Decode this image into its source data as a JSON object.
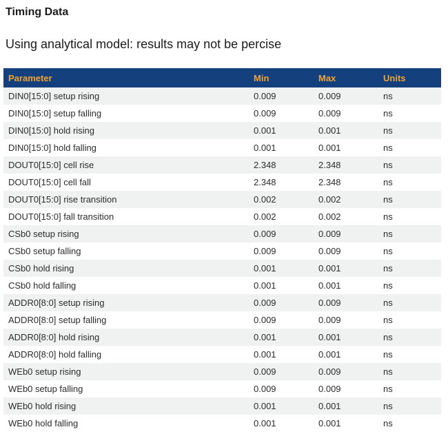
{
  "page": {
    "title": "Timing Data",
    "subtitle": "Using analytical model: results may not be percise"
  },
  "colors": {
    "header_bg": "#14417E",
    "header_text": "#F0A330",
    "row_stripe": "#F0F1F1",
    "row_text": "#2B2B2B"
  },
  "table": {
    "columns": [
      "Parameter",
      "Min",
      "Max",
      "Units"
    ],
    "rows": [
      {
        "parameter": "DIN0[15:0] setup rising",
        "min": "0.009",
        "max": "0.009",
        "units": "ns"
      },
      {
        "parameter": "DIN0[15:0] setup falling",
        "min": "0.009",
        "max": "0.009",
        "units": "ns"
      },
      {
        "parameter": "DIN0[15:0] hold rising",
        "min": "0.001",
        "max": "0.001",
        "units": "ns"
      },
      {
        "parameter": "DIN0[15:0] hold falling",
        "min": "0.001",
        "max": "0.001",
        "units": "ns"
      },
      {
        "parameter": "DOUT0[15:0] cell rise",
        "min": "2.348",
        "max": "2.348",
        "units": "ns"
      },
      {
        "parameter": "DOUT0[15:0] cell fall",
        "min": "2.348",
        "max": "2.348",
        "units": "ns"
      },
      {
        "parameter": "DOUT0[15:0] rise transition",
        "min": "0.002",
        "max": "0.002",
        "units": "ns"
      },
      {
        "parameter": "DOUT0[15:0] fall transition",
        "min": "0.002",
        "max": "0.002",
        "units": "ns"
      },
      {
        "parameter": "CSb0 setup rising",
        "min": "0.009",
        "max": "0.009",
        "units": "ns"
      },
      {
        "parameter": "CSb0 setup falling",
        "min": "0.009",
        "max": "0.009",
        "units": "ns"
      },
      {
        "parameter": "CSb0 hold rising",
        "min": "0.001",
        "max": "0.001",
        "units": "ns"
      },
      {
        "parameter": "CSb0 hold falling",
        "min": "0.001",
        "max": "0.001",
        "units": "ns"
      },
      {
        "parameter": "ADDR0[8:0] setup rising",
        "min": "0.009",
        "max": "0.009",
        "units": "ns"
      },
      {
        "parameter": "ADDR0[8:0] setup falling",
        "min": "0.009",
        "max": "0.009",
        "units": "ns"
      },
      {
        "parameter": "ADDR0[8:0] hold rising",
        "min": "0.001",
        "max": "0.001",
        "units": "ns"
      },
      {
        "parameter": "ADDR0[8:0] hold falling",
        "min": "0.001",
        "max": "0.001",
        "units": "ns"
      },
      {
        "parameter": "WEb0 setup rising",
        "min": "0.009",
        "max": "0.009",
        "units": "ns"
      },
      {
        "parameter": "WEb0 setup falling",
        "min": "0.009",
        "max": "0.009",
        "units": "ns"
      },
      {
        "parameter": "WEb0 hold rising",
        "min": "0.001",
        "max": "0.001",
        "units": "ns"
      },
      {
        "parameter": "WEb0 hold falling",
        "min": "0.001",
        "max": "0.001",
        "units": "ns"
      }
    ]
  }
}
